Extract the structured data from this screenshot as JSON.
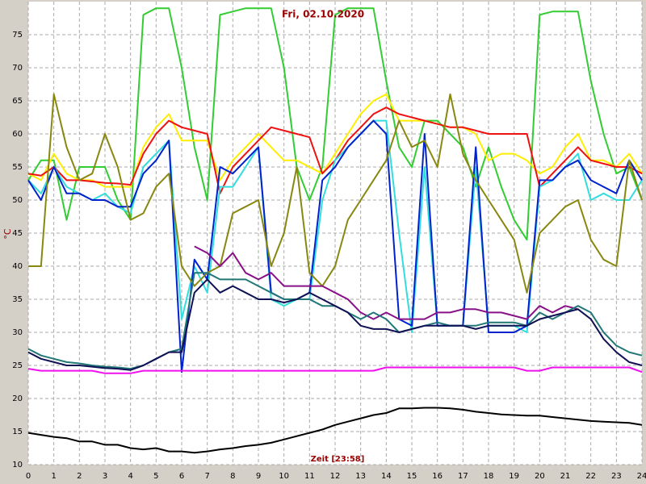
{
  "chart_data": {
    "type": "line",
    "title": "Fri, 02.10.2020",
    "x_label": "Zeit [23:58]",
    "y_label": "°C",
    "x": [
      0,
      0.5,
      1,
      1.5,
      2,
      2.5,
      3,
      3.5,
      4,
      4.5,
      5,
      5.5,
      6,
      6.5,
      7,
      7.5,
      8,
      8.5,
      9,
      9.5,
      10,
      10.5,
      11,
      11.5,
      12,
      12.5,
      13,
      13.5,
      14,
      14.5,
      15,
      15.5,
      16,
      16.5,
      17,
      17.5,
      18,
      18.5,
      19,
      19.5,
      20,
      20.5,
      21,
      21.5,
      22,
      22.5,
      23,
      23.5,
      24
    ],
    "xlim": [
      0,
      24
    ],
    "xticks": [
      0,
      1,
      2,
      3,
      4,
      5,
      6,
      7,
      8,
      9,
      10,
      11,
      12,
      13,
      14,
      15,
      16,
      17,
      18,
      19,
      20,
      21,
      22,
      23,
      24
    ],
    "ylim": [
      10,
      80
    ],
    "yticks": [
      10,
      15,
      20,
      25,
      30,
      35,
      40,
      45,
      50,
      55,
      60,
      65,
      70,
      75
    ],
    "grid": true,
    "series": [
      {
        "color": "#33cc33",
        "values": [
          53,
          56,
          56,
          47,
          55,
          55,
          55,
          50,
          47,
          78,
          79,
          79,
          70,
          58,
          50,
          78,
          78.5,
          79,
          79,
          79,
          70,
          55,
          50,
          55,
          78,
          79,
          79,
          79,
          68,
          58,
          55,
          62,
          62,
          60,
          58,
          52,
          58,
          52,
          47,
          44,
          78,
          78.5,
          78.5,
          78.5,
          68,
          60,
          54,
          55,
          50
        ]
      },
      {
        "color": "#ffee00",
        "values": [
          54,
          53,
          57,
          54,
          53,
          53,
          52,
          52,
          52,
          58,
          61,
          63,
          59,
          59,
          59,
          53,
          56,
          58,
          60,
          58,
          56,
          56,
          55,
          54,
          57,
          60,
          63,
          65,
          66,
          62,
          62,
          62,
          61.5,
          61,
          61,
          60,
          56,
          57,
          57,
          56,
          54,
          55,
          58,
          60,
          56,
          56,
          55,
          57,
          54
        ]
      },
      {
        "color": "#ee1111",
        "values": [
          54,
          53.7,
          55,
          53,
          53,
          52.8,
          52.6,
          52.5,
          52.3,
          57,
          60,
          62,
          61,
          60.5,
          60,
          51,
          55,
          57,
          59,
          61,
          60.5,
          60,
          59.5,
          54,
          56,
          59,
          61,
          63,
          64,
          63,
          62.5,
          62,
          61.5,
          61,
          61,
          60.5,
          60,
          60,
          60,
          60,
          52,
          54,
          56,
          58,
          56,
          55.5,
          55,
          55,
          54
        ]
      },
      {
        "color": "#33dddd",
        "values": [
          53,
          51,
          55,
          52,
          51,
          50,
          51,
          49,
          48,
          55,
          57,
          59,
          32,
          40,
          36,
          52,
          52,
          55,
          58,
          35,
          34,
          35,
          35,
          50,
          56,
          58,
          60,
          62,
          62,
          45,
          30,
          55,
          31,
          31,
          31,
          55,
          31,
          31,
          31,
          30,
          52,
          53,
          55,
          57,
          50,
          51,
          50,
          50,
          53
        ]
      },
      {
        "color": "#0022cc",
        "values": [
          53,
          50,
          55,
          51,
          51,
          50,
          50,
          49,
          49,
          54,
          56,
          59,
          24,
          41,
          38,
          55,
          54,
          56,
          58,
          36,
          35,
          35,
          36,
          53,
          55,
          58,
          60,
          62,
          60,
          32,
          31,
          60,
          31,
          31,
          31,
          58,
          30,
          30,
          30,
          31,
          53,
          53,
          55,
          56,
          53,
          52,
          51,
          56,
          53
        ]
      },
      {
        "color": "#888811",
        "values": [
          40,
          40,
          66,
          58,
          53,
          54,
          60,
          55,
          47,
          48,
          52,
          54,
          40,
          37,
          39,
          40,
          48,
          49,
          50,
          40,
          45,
          55,
          39,
          37,
          40,
          47,
          50,
          53,
          56,
          62,
          58,
          59,
          55,
          66,
          57,
          53,
          50,
          47,
          44,
          36,
          45,
          47,
          49,
          50,
          44,
          41,
          40,
          56,
          50
        ]
      },
      {
        "color": "#881188",
        "values": [
          null,
          null,
          null,
          null,
          null,
          null,
          null,
          null,
          null,
          null,
          null,
          null,
          null,
          43,
          42,
          40,
          42,
          39,
          38,
          39,
          37,
          37,
          37,
          37,
          36,
          35,
          33,
          32,
          33,
          32,
          32,
          32,
          33,
          33,
          33.5,
          33.5,
          33,
          33,
          32.5,
          32,
          34,
          33,
          34,
          33.5,
          null,
          null,
          null,
          null,
          null
        ]
      },
      {
        "color": "#227777",
        "values": [
          27.5,
          26.5,
          26,
          25.5,
          25.3,
          25,
          24.8,
          24.7,
          24.5,
          25,
          26,
          27,
          27.5,
          39,
          39,
          38,
          38,
          38,
          37,
          36,
          35,
          35,
          35,
          34,
          34,
          33,
          32,
          33,
          32,
          30,
          30.5,
          31,
          31.5,
          31,
          31,
          31,
          31.5,
          31.5,
          31.5,
          31,
          33,
          32,
          33,
          34,
          33,
          30,
          28,
          27,
          26.5
        ]
      },
      {
        "color": "#111155",
        "values": [
          27,
          26,
          25.5,
          25,
          25,
          24.8,
          24.6,
          24.5,
          24.3,
          25,
          26,
          27,
          27,
          36,
          38,
          36,
          37,
          36,
          35,
          35,
          34.5,
          35,
          36,
          35,
          34,
          33,
          31,
          30.5,
          30.5,
          30,
          30.5,
          31,
          31,
          31,
          31,
          30.5,
          31,
          31,
          31,
          31,
          32,
          32.5,
          33,
          33.5,
          32,
          29,
          27,
          25.5,
          25
        ]
      },
      {
        "color": "#ee11ee",
        "values": [
          24.5,
          24.2,
          24.2,
          24.2,
          24.2,
          24.2,
          23.8,
          23.8,
          23.8,
          24.2,
          24.2,
          24.2,
          24.2,
          24.2,
          24.2,
          24.2,
          24.2,
          24.2,
          24.2,
          24.2,
          24.2,
          24.2,
          24.2,
          24.2,
          24.2,
          24.2,
          24.2,
          24.2,
          24.7,
          24.7,
          24.7,
          24.7,
          24.7,
          24.7,
          24.7,
          24.7,
          24.7,
          24.7,
          24.7,
          24.2,
          24.2,
          24.7,
          24.7,
          24.7,
          24.7,
          24.7,
          24.7,
          24.7,
          24
        ]
      },
      {
        "color": "#000000",
        "values": [
          14.8,
          14.5,
          14.2,
          14,
          13.5,
          13.5,
          13,
          13,
          12.5,
          12.3,
          12.5,
          12,
          12,
          11.8,
          12,
          12.3,
          12.5,
          12.8,
          13,
          13.3,
          13.8,
          14.3,
          14.8,
          15.3,
          16,
          16.5,
          17,
          17.5,
          17.8,
          18.5,
          18.5,
          18.6,
          18.6,
          18.5,
          18.3,
          18,
          17.8,
          17.6,
          17.5,
          17.4,
          17.4,
          17.2,
          17,
          16.8,
          16.6,
          16.5,
          16.4,
          16.3,
          16
        ]
      }
    ]
  }
}
